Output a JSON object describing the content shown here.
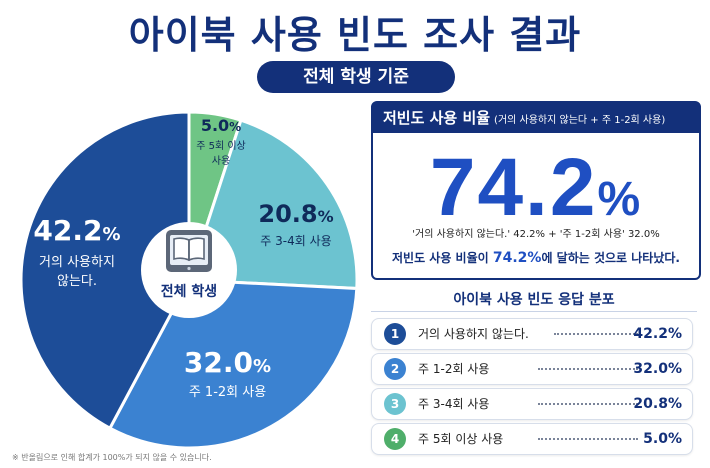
{
  "title": "아이북 사용 빈도 조사 결과",
  "subtitle": "전체 학생 기준",
  "center_label": "전체 학생",
  "chart_data": {
    "type": "pie",
    "title": "아이북 사용 빈도 조사 결과",
    "slices": [
      {
        "label": "거의 사용하지 않는다.",
        "value": 42.2,
        "color": "#1d4d98"
      },
      {
        "label": "주 1-2회 사용",
        "value": 32.0,
        "color": "#3b82d1"
      },
      {
        "label": "주 3-4회 사용",
        "value": 20.8,
        "color": "#6cc3d0"
      },
      {
        "label": "주 5회 이상 사용",
        "value": 5.0,
        "color": "#6fc585"
      }
    ],
    "slice_labels": [
      {
        "pct": "42.2",
        "unit": "%",
        "line1": "거의 사용하지",
        "line2": "않는다."
      },
      {
        "pct": "32.0",
        "unit": "%",
        "line1": "주 1-2회 사용",
        "line2": ""
      },
      {
        "pct": "20.8",
        "unit": "%",
        "line1": "주 3-4회 사용",
        "line2": ""
      },
      {
        "pct": "5.0",
        "unit": "%",
        "line1": "주 5회 이상",
        "line2": "사용"
      }
    ]
  },
  "low_usage": {
    "header": "저빈도 사용 비율",
    "header_note": "(거의 사용하지 않는다 + 주 1-2회 사용)",
    "value": "74.2",
    "unit": "%",
    "formula": "'거의 사용하지 않는다.' 42.2% + '주 1-2회 사용' 32.0%",
    "summary_pre": "저빈도 사용 비율이 ",
    "summary_value": "74.2%",
    "summary_post": "에 달하는 것으로 나타났다."
  },
  "distribution": {
    "title": "아이북 사용 빈도 응답 분포",
    "rows": [
      {
        "num": "1",
        "label": "거의 사용하지 않는다.",
        "value": "42.2%",
        "color": "#1d4d98"
      },
      {
        "num": "2",
        "label": "주 1-2회 사용",
        "value": "32.0%",
        "color": "#3b82d1"
      },
      {
        "num": "3",
        "label": "주 3-4회 사용",
        "value": "20.8%",
        "color": "#6cc3d0"
      },
      {
        "num": "4",
        "label": "주 5회 이상 사용",
        "value": "5.0%",
        "color": "#4fae6a"
      }
    ]
  },
  "note": "※ 반올림으로 인해 합계가 100%가 되지 않을 수 있습니다."
}
